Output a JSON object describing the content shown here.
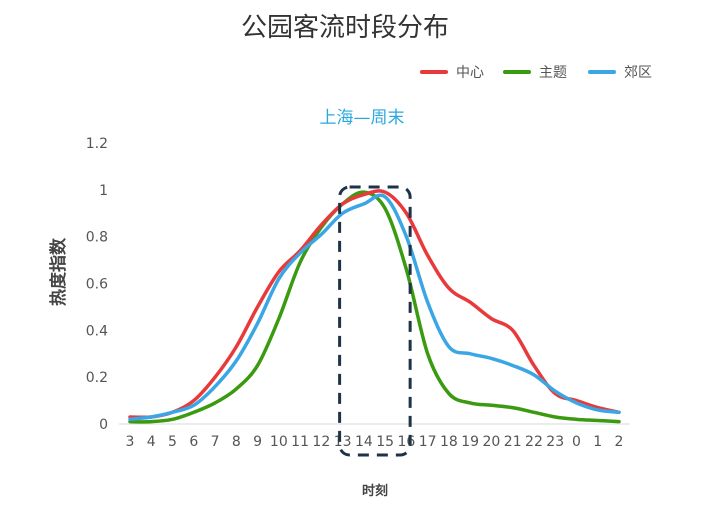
{
  "chart_data": {
    "type": "line",
    "title": "公园客流时段分布",
    "subtitle": "上海—周末",
    "xlabel": "时刻",
    "ylabel": "热度指数",
    "categories": [
      "3",
      "4",
      "5",
      "6",
      "7",
      "8",
      "9",
      "10",
      "11",
      "12",
      "13",
      "14",
      "15",
      "16",
      "17",
      "18",
      "19",
      "20",
      "21",
      "22",
      "23",
      "0",
      "1",
      "2"
    ],
    "ylim": [
      0,
      1.2
    ],
    "yticks": [
      "0",
      "0.2",
      "0.4",
      "0.6",
      "0.8",
      "1",
      "1.2"
    ],
    "grid": false,
    "legend_position": "top-right",
    "highlight_range": [
      "13",
      "15"
    ],
    "series": [
      {
        "name": "中心",
        "color": "#e83a3a",
        "values": [
          0.03,
          0.03,
          0.05,
          0.1,
          0.2,
          0.33,
          0.5,
          0.65,
          0.74,
          0.85,
          0.94,
          0.98,
          0.99,
          0.9,
          0.72,
          0.58,
          0.52,
          0.45,
          0.4,
          0.25,
          0.13,
          0.1,
          0.07,
          0.05
        ]
      },
      {
        "name": "主题",
        "color": "#3a9a10",
        "values": [
          0.01,
          0.01,
          0.02,
          0.05,
          0.09,
          0.15,
          0.25,
          0.45,
          0.69,
          0.84,
          0.94,
          0.99,
          0.92,
          0.66,
          0.3,
          0.13,
          0.09,
          0.08,
          0.07,
          0.05,
          0.03,
          0.02,
          0.015,
          0.01
        ]
      },
      {
        "name": "郊区",
        "color": "#3aa6e6",
        "values": [
          0.02,
          0.03,
          0.05,
          0.08,
          0.16,
          0.27,
          0.43,
          0.62,
          0.73,
          0.81,
          0.9,
          0.94,
          0.97,
          0.8,
          0.52,
          0.33,
          0.3,
          0.28,
          0.25,
          0.21,
          0.14,
          0.09,
          0.06,
          0.05
        ]
      }
    ]
  }
}
